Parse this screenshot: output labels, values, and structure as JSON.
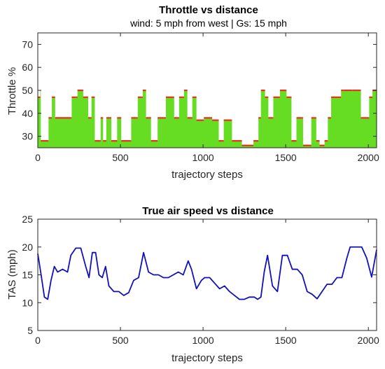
{
  "chart_data": [
    {
      "type": "area",
      "title": "Throttle vs distance",
      "subtitle": "wind: 5 mph from west | Gs: 15 mph",
      "xlabel": "trajectory steps",
      "ylabel": "Throttle %",
      "xlim": [
        0,
        2050
      ],
      "ylim": [
        25,
        75
      ],
      "xticks": [
        0,
        500,
        1000,
        1500,
        2000
      ],
      "yticks": [
        30,
        40,
        50,
        60,
        70
      ],
      "grid": false,
      "colors": {
        "fill": "#66dd22",
        "marker": "#e8321e",
        "axis": "#262626"
      },
      "series": [
        {
          "x": [
            0,
            15,
            18,
            60,
            65,
            80,
            85,
            100,
            105,
            200,
            205,
            230,
            240,
            270,
            275,
            300,
            305,
            320,
            325,
            340,
            345,
            370,
            380,
            390,
            395,
            410,
            415,
            440,
            445,
            470,
            480,
            500,
            505,
            560,
            565,
            600,
            605,
            630,
            635,
            650,
            655,
            680,
            685,
            720,
            725,
            770,
            775,
            820,
            825,
            850,
            855,
            880,
            885,
            900,
            905,
            930,
            935,
            940,
            960,
            1000,
            1005,
            1050,
            1055,
            1090,
            1095,
            1120,
            1125,
            1170,
            1175,
            1230,
            1235,
            1300,
            1305,
            1330,
            1335,
            1345,
            1350,
            1370,
            1375,
            1390,
            1395,
            1420,
            1425,
            1460,
            1465,
            1500,
            1505,
            1530,
            1535,
            1560,
            1565,
            1600,
            1605,
            1650,
            1655,
            1680,
            1685,
            1700,
            1705,
            1730,
            1735,
            1750,
            1755,
            1770,
            1775,
            1830,
            1835,
            1850,
            1855,
            1900,
            1905,
            1950,
            1955,
            2000,
            2005,
            2020,
            2025,
            2050
          ],
          "values": [
            47,
            50,
            28,
            28,
            38,
            38,
            47,
            47,
            38,
            38,
            47,
            47,
            50,
            50,
            47,
            47,
            38,
            38,
            47,
            47,
            28,
            28,
            38,
            38,
            28,
            28,
            38,
            38,
            28,
            28,
            38,
            38,
            28,
            28,
            38,
            38,
            47,
            47,
            50,
            50,
            38,
            38,
            28,
            28,
            38,
            38,
            47,
            47,
            38,
            38,
            47,
            47,
            50,
            50,
            38,
            38,
            47,
            47,
            37,
            37,
            38,
            38,
            37,
            37,
            28,
            28,
            37,
            37,
            28,
            28,
            26,
            26,
            28,
            28,
            38,
            38,
            50,
            50,
            47,
            47,
            38,
            38,
            47,
            47,
            50,
            50,
            47,
            47,
            28,
            28,
            38,
            38,
            26,
            26,
            38,
            38,
            28,
            28,
            26,
            26,
            28,
            28,
            38,
            38,
            47,
            47,
            50,
            50,
            50,
            50,
            50,
            50,
            38,
            38,
            47,
            47,
            50,
            50
          ]
        }
      ]
    },
    {
      "type": "line",
      "title": "True air speed vs distance",
      "xlabel": "trajectory steps",
      "ylabel": "TAS (mph)",
      "xlim": [
        0,
        2050
      ],
      "ylim": [
        5,
        25
      ],
      "xticks": [
        0,
        500,
        1000,
        1500,
        2000
      ],
      "yticks": [
        5,
        10,
        15,
        20,
        25
      ],
      "grid": false,
      "colors": {
        "line": "#1111bb",
        "axis": "#262626"
      },
      "series": [
        {
          "x": [
            0,
            20,
            40,
            60,
            80,
            100,
            120,
            150,
            180,
            200,
            230,
            260,
            290,
            310,
            330,
            350,
            370,
            390,
            410,
            430,
            460,
            490,
            520,
            550,
            580,
            610,
            640,
            670,
            700,
            730,
            760,
            790,
            820,
            850,
            880,
            910,
            930,
            960,
            990,
            1010,
            1040,
            1070,
            1100,
            1130,
            1160,
            1190,
            1220,
            1250,
            1280,
            1310,
            1330,
            1350,
            1370,
            1390,
            1420,
            1450,
            1480,
            1510,
            1540,
            1570,
            1600,
            1630,
            1660,
            1690,
            1720,
            1750,
            1780,
            1810,
            1840,
            1870,
            1890,
            1920,
            1960,
            1990,
            2020,
            2050
          ],
          "values": [
            18.8,
            15,
            11,
            10.6,
            14,
            16.5,
            15.5,
            16,
            15.5,
            18.5,
            19.8,
            19.8,
            16.5,
            14.5,
            19,
            19,
            15,
            14.5,
            16.5,
            13,
            12,
            12,
            11.3,
            11.8,
            14,
            14.5,
            19,
            15.5,
            15,
            15,
            14.5,
            14.5,
            15,
            15.5,
            15,
            17.5,
            16,
            12.5,
            14,
            14.5,
            14.5,
            13.5,
            12.5,
            13,
            12,
            11.3,
            10.6,
            10.6,
            11,
            11,
            10.6,
            11,
            15.5,
            18.5,
            13,
            12,
            18.5,
            18.5,
            16,
            16,
            15,
            12,
            11.5,
            10.7,
            12,
            13.3,
            13.3,
            14.5,
            14.5,
            18,
            20,
            20,
            20,
            18,
            14.6,
            19.5
          ]
        }
      ]
    }
  ]
}
